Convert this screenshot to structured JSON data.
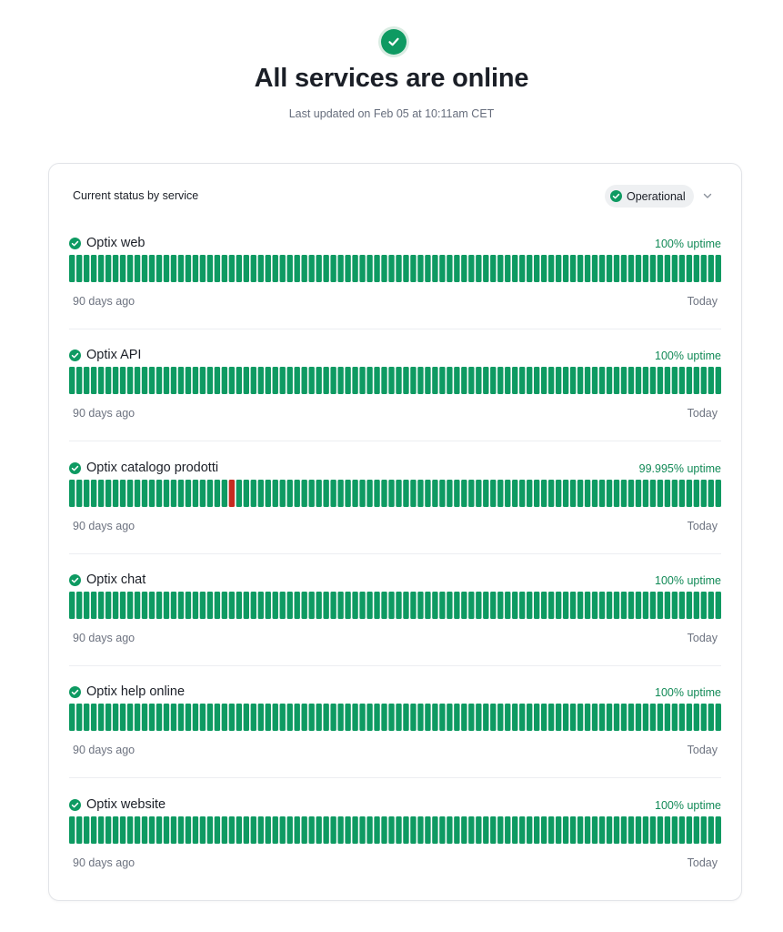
{
  "header": {
    "icon": "check-circle-icon",
    "title": "All services are online",
    "last_updated": "Last updated on Feb 05 at 10:11am CET"
  },
  "status_card": {
    "title": "Current status by service",
    "filter_label": "Operational",
    "filter_icon": "check-circle-icon",
    "dropdown_icon": "chevron-down-icon"
  },
  "colors": {
    "ok": "#0e9a62",
    "incident": "#c62a20",
    "uptime_text": "#128a57"
  },
  "services": [
    {
      "name": "Optix web",
      "uptime": "100% uptime",
      "range_start": "90 days ago",
      "range_end": "Today",
      "days": 90,
      "incident_days": []
    },
    {
      "name": "Optix API",
      "uptime": "100% uptime",
      "range_start": "90 days ago",
      "range_end": "Today",
      "days": 90,
      "incident_days": []
    },
    {
      "name": "Optix catalogo prodotti",
      "uptime": "99.995% uptime",
      "range_start": "90 days ago",
      "range_end": "Today",
      "days": 90,
      "incident_days": [
        22
      ]
    },
    {
      "name": "Optix chat",
      "uptime": "100% uptime",
      "range_start": "90 days ago",
      "range_end": "Today",
      "days": 90,
      "incident_days": []
    },
    {
      "name": "Optix help online",
      "uptime": "100% uptime",
      "range_start": "90 days ago",
      "range_end": "Today",
      "days": 90,
      "incident_days": []
    },
    {
      "name": "Optix website",
      "uptime": "100% uptime",
      "range_start": "90 days ago",
      "range_end": "Today",
      "days": 90,
      "incident_days": []
    }
  ]
}
